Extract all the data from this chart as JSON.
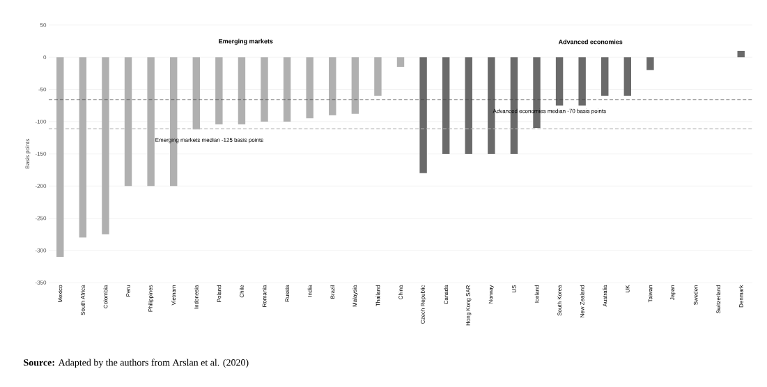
{
  "chart_data": {
    "type": "bar",
    "ylabel": "Basis points",
    "categories": [
      "Mexico",
      "South Africa",
      "Colombia",
      "Peru",
      "Philippines",
      "Vietnam",
      "Indonesia",
      "Poland",
      "Chile",
      "Romania",
      "Russia",
      "India",
      "Brazil",
      "Malaysia",
      "Thailand",
      "China",
      "Czech Republic",
      "Canada",
      "Hong Kong SAR",
      "Norway",
      "US",
      "Iceland",
      "South Korea",
      "New Zealand",
      "Australia",
      "UK",
      "Taiwan",
      "Japan",
      "Sweden",
      "Switzerland",
      "Denmark"
    ],
    "values": [
      -310,
      -280,
      -275,
      -200,
      -200,
      -200,
      -112,
      -104,
      -104,
      -100,
      -100,
      -95,
      -90,
      -88,
      -60,
      -15,
      -180,
      -150,
      -150,
      -150,
      -150,
      -110,
      -75,
      -75,
      -60,
      -60,
      -20,
      0,
      0,
      0,
      10
    ],
    "colors": [
      "#b0b0b0",
      "#b0b0b0",
      "#b0b0b0",
      "#b0b0b0",
      "#b0b0b0",
      "#b0b0b0",
      "#b0b0b0",
      "#b0b0b0",
      "#b0b0b0",
      "#b0b0b0",
      "#b0b0b0",
      "#b0b0b0",
      "#b0b0b0",
      "#b0b0b0",
      "#b0b0b0",
      "#b0b0b0",
      "#6a6a6a",
      "#6a6a6a",
      "#6a6a6a",
      "#6a6a6a",
      "#6a6a6a",
      "#6a6a6a",
      "#6a6a6a",
      "#6a6a6a",
      "#6a6a6a",
      "#6a6a6a",
      "#6a6a6a",
      "#6a6a6a",
      "#6a6a6a",
      "#6a6a6a",
      "#6a6a6a"
    ],
    "ylim": [
      -350,
      50
    ],
    "yticks": [
      -350,
      -300,
      -250,
      -200,
      -150,
      -100,
      -50,
      0,
      50
    ],
    "grid": "y",
    "ref_lines": [
      {
        "axis": "y",
        "value": -111,
        "label": "Emerging markets median -125 basis points",
        "color": "#b0b0b0",
        "line_style": "dashed"
      },
      {
        "axis": "y",
        "value": -66,
        "label": "Advanced economies median -70 basis points",
        "color": "#404040",
        "line_style": "dashed"
      }
    ],
    "annotations": [
      "Emerging markets",
      "Advanced economies",
      "**Source:** Adapted by the authors from Arslan et al. (2020)"
    ]
  }
}
